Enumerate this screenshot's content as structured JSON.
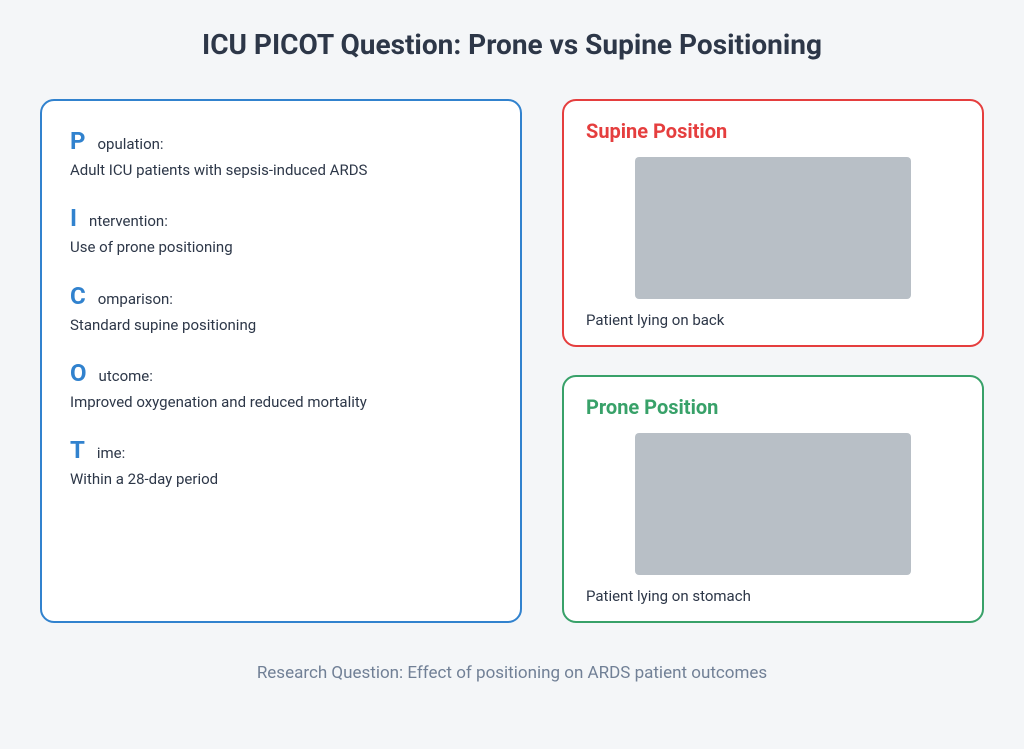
{
  "title": "ICU PICOT Question: Prone vs Supine Positioning",
  "colors": {
    "background": "#f4f6f8",
    "card_bg": "#ffffff",
    "picot_border": "#3182ce",
    "picot_letter": "#3182ce",
    "supine_border": "#e53e3e",
    "supine_title": "#e53e3e",
    "prone_border": "#38a169",
    "prone_title": "#38a169",
    "text_primary": "#2d3748",
    "text_muted": "#718096",
    "placeholder": "#b8bfc6"
  },
  "picot": {
    "items": [
      {
        "letter": "P",
        "label": "opulation:",
        "desc": "Adult ICU patients with sepsis-induced ARDS"
      },
      {
        "letter": "I",
        "label": "ntervention:",
        "desc": "Use of prone positioning"
      },
      {
        "letter": "C",
        "label": "omparison:",
        "desc": "Standard supine positioning"
      },
      {
        "letter": "O",
        "label": "utcome:",
        "desc": "Improved oxygenation and reduced mortality"
      },
      {
        "letter": "T",
        "label": "ime:",
        "desc": "Within a 28-day period"
      }
    ]
  },
  "positions": {
    "supine": {
      "title": "Supine Position",
      "caption": "Patient lying on back"
    },
    "prone": {
      "title": "Prone Position",
      "caption": "Patient lying on stomach"
    }
  },
  "footer": "Research Question: Effect of positioning on ARDS patient outcomes"
}
